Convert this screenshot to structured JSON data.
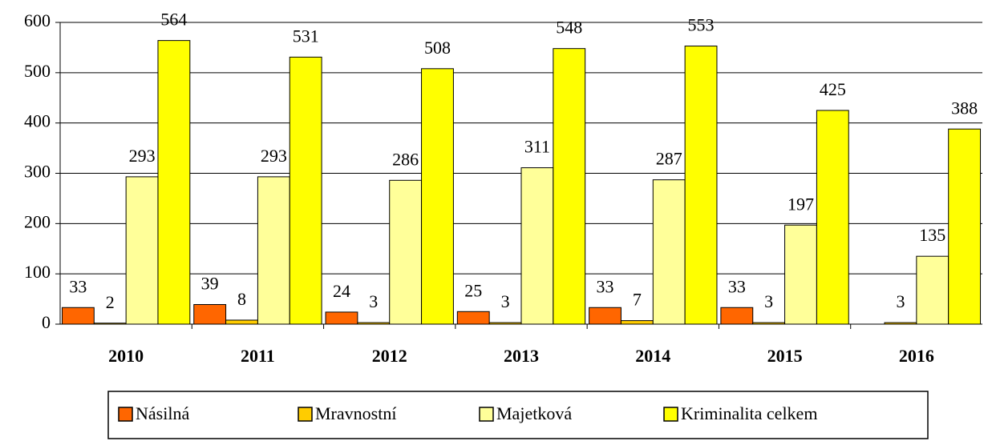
{
  "chart_data": {
    "type": "bar",
    "categories": [
      "2010",
      "2011",
      "2012",
      "2013",
      "2014",
      "2015",
      "2016"
    ],
    "series": [
      {
        "name": "Násilná",
        "color": "#ff6600",
        "values": [
          33,
          39,
          24,
          25,
          33,
          33,
          null
        ]
      },
      {
        "name": "Mravnostní",
        "color": "#ffcc00",
        "values": [
          2,
          8,
          3,
          3,
          7,
          3,
          3
        ]
      },
      {
        "name": "Majetková",
        "color": "#ffff99",
        "values": [
          293,
          293,
          286,
          311,
          287,
          197,
          135
        ]
      },
      {
        "name": "Kriminalita celkem",
        "color": "#ffff00",
        "values": [
          564,
          531,
          508,
          548,
          553,
          425,
          388
        ]
      }
    ],
    "ylim": [
      0,
      600
    ],
    "yticks": [
      0,
      100,
      200,
      300,
      400,
      500,
      600
    ],
    "grid": true,
    "legend": "bottom"
  }
}
